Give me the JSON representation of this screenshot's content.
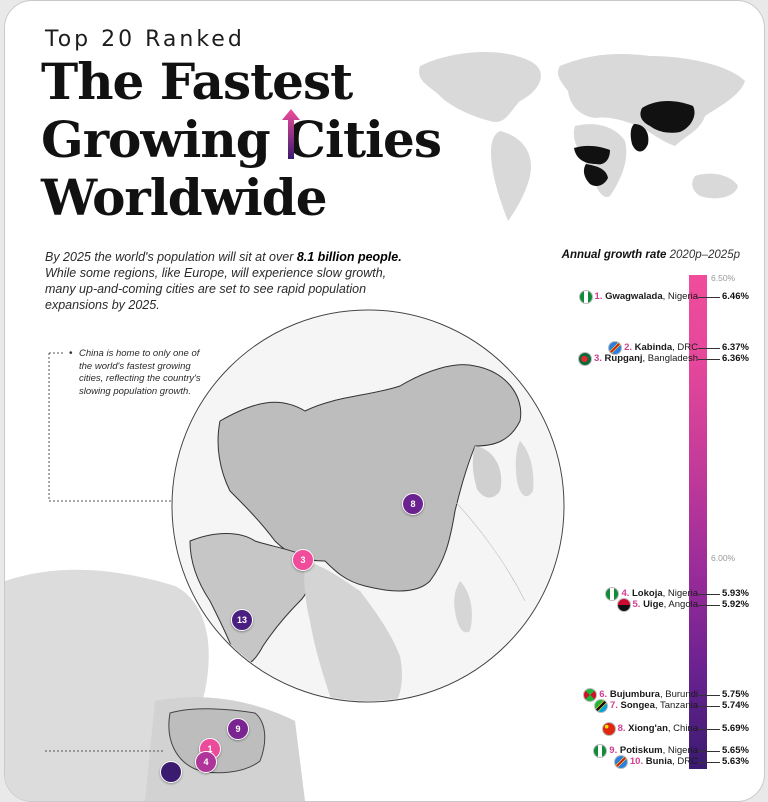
{
  "header": {
    "kicker": "Top 20 Ranked",
    "title_lines": [
      "The Fastest",
      "Growing Cities",
      "Worldwide"
    ]
  },
  "intro": {
    "text_before": "By 2025 the world's population will sit at over ",
    "bold": "8.1 billion people.",
    "text_after": " While some regions, like Europe, will experience slow growth, many up-and-coming cities are set to see rapid population expansions by 2025."
  },
  "note": "China is home to only one of the world's fastest growing cities, reflecting the country's slowing population growth.",
  "chart_data": {
    "type": "bar",
    "title": "Annual growth rate",
    "subtitle": "2020p–2025p",
    "scale_ticks": [
      "6.50%",
      "6.00%"
    ],
    "cities": [
      {
        "rank": "1.",
        "name": "Gwagwalada",
        "country": ", Nigeria",
        "value": "6.46%",
        "flag": "nigeria"
      },
      {
        "rank": "2.",
        "name": "Kabinda",
        "country": ", DRC",
        "value": "6.37%",
        "flag": "drc"
      },
      {
        "rank": "3.",
        "name": "Rupganj",
        "country": ", Bangladesh",
        "value": "6.36%",
        "flag": "bangladesh"
      },
      {
        "rank": "4.",
        "name": "Lokoja",
        "country": ", Nigeria",
        "value": "5.93%",
        "flag": "nigeria"
      },
      {
        "rank": "5.",
        "name": "Uige",
        "country": ", Angola",
        "value": "5.92%",
        "flag": "angola"
      },
      {
        "rank": "6.",
        "name": "Bujumbura",
        "country": ", Burundi",
        "value": "5.75%",
        "flag": "burundi"
      },
      {
        "rank": "7.",
        "name": "Songea",
        "country": ", Tanzania",
        "value": "5.74%",
        "flag": "tanzania"
      },
      {
        "rank": "8.",
        "name": "Xiong'an",
        "country": ", China",
        "value": "5.69%",
        "flag": "china"
      },
      {
        "rank": "9.",
        "name": "Potiskum",
        "country": ", Nigeria",
        "value": "5.65%",
        "flag": "nigeria"
      },
      {
        "rank": "10.",
        "name": "Bunia",
        "country": ", DRC",
        "value": "5.63%",
        "flag": "drc"
      }
    ]
  },
  "map_markers": [
    "8",
    "3",
    "13",
    "9",
    "1",
    "4"
  ],
  "colors": {
    "pink": "#f04c9b",
    "purple": "#6a2290",
    "map": "#c9c9c9"
  }
}
